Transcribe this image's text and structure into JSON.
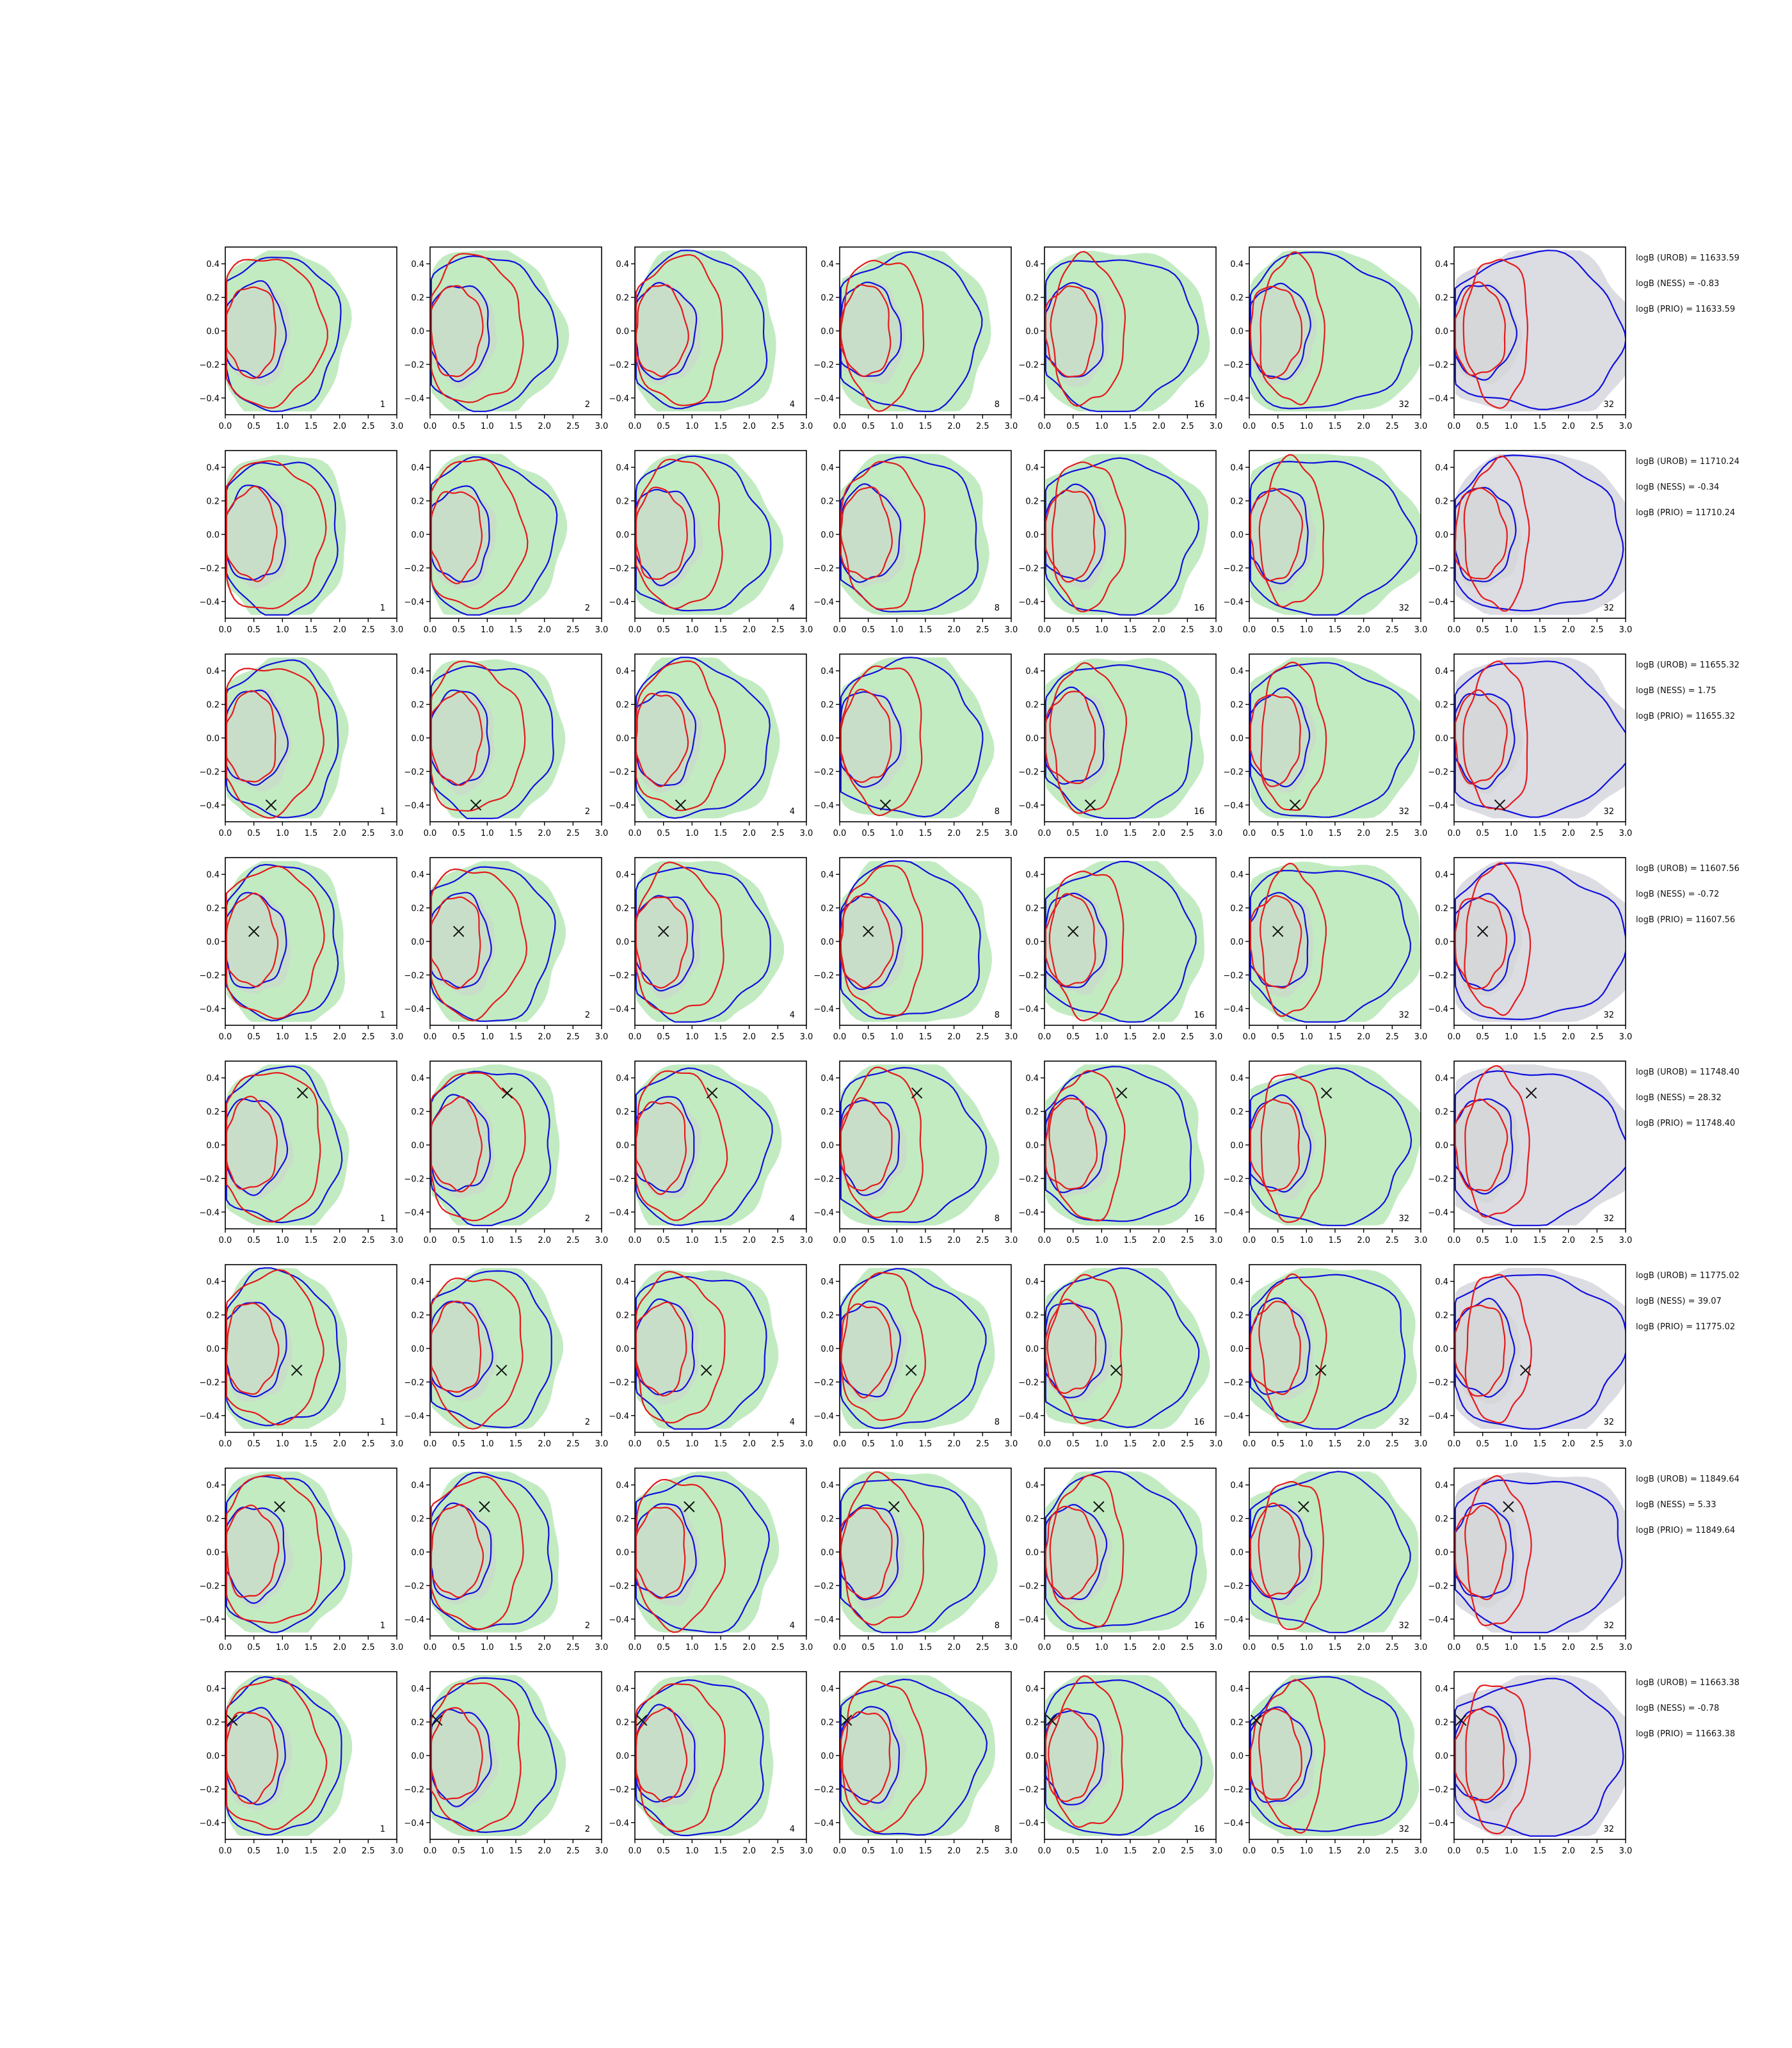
{
  "chart_data": {
    "type": "contour-grid",
    "x_ticks": [
      "0.0",
      "0.5",
      "1.0",
      "1.5",
      "2.0",
      "2.5",
      "3.0"
    ],
    "y_ticks": [
      "0.4",
      "0.2",
      "0.0",
      "−0.2",
      "−0.4"
    ],
    "xlim": [
      0,
      3
    ],
    "ylim": [
      -0.5,
      0.5
    ],
    "column_labels": [
      "1",
      "2",
      "4",
      "8",
      "16",
      "32",
      "32"
    ],
    "colors": {
      "fill_green": "#c2ebc2",
      "fill_gray": "#dcdce3",
      "contour_red": "#e41a1c",
      "contour_blue": "#1010dd",
      "marker": "#111111"
    },
    "rows": [
      {
        "marker": null,
        "stats": [
          "logB (UROB) = 11633.59",
          "logB (NESS) = -0.83",
          "logB (PRIO) = 11633.59"
        ]
      },
      {
        "marker": null,
        "stats": [
          "logB (UROB) = 11710.24",
          "logB (NESS) = -0.34",
          "logB (PRIO) = 11710.24"
        ]
      },
      {
        "marker": [
          0.8,
          -0.4
        ],
        "stats": [
          "logB (UROB) = 11655.32",
          "logB (NESS) = 1.75",
          "logB (PRIO) = 11655.32"
        ]
      },
      {
        "marker": [
          0.5,
          0.06
        ],
        "stats": [
          "logB (UROB) = 11607.56",
          "logB (NESS) = -0.72",
          "logB (PRIO) = 11607.56"
        ]
      },
      {
        "marker": [
          1.35,
          0.31
        ],
        "stats": [
          "logB (UROB) = 11748.40",
          "logB (NESS) = 28.32",
          "logB (PRIO) = 11748.40"
        ]
      },
      {
        "marker": [
          1.25,
          -0.13
        ],
        "stats": [
          "logB (UROB) = 11775.02",
          "logB (NESS) = 39.07",
          "logB (PRIO) = 11775.02"
        ]
      },
      {
        "marker": [
          0.95,
          0.27
        ],
        "stats": [
          "logB (UROB) = 11849.64",
          "logB (NESS) = 5.33",
          "logB (PRIO) = 11849.64"
        ]
      },
      {
        "marker": [
          0.12,
          0.21
        ],
        "stats": [
          "logB (UROB) = 11663.38",
          "logB (NESS) = -0.78",
          "logB (PRIO) = 11663.38"
        ]
      }
    ]
  }
}
